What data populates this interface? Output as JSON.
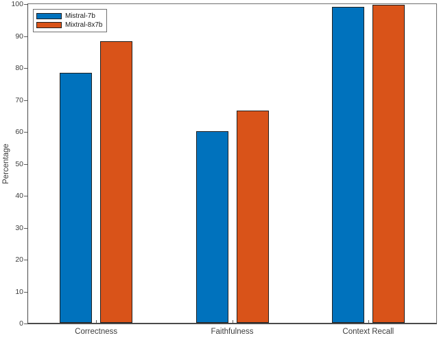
{
  "chart_data": {
    "type": "bar",
    "title": "",
    "categories": [
      "Correctness",
      "Faithfulness",
      "Context Recall"
    ],
    "series": [
      {
        "name": "Mistral-7b",
        "color": "#0072BD",
        "values": [
          78.2,
          60.1,
          99.0
        ]
      },
      {
        "name": "Mixtral-8x7b",
        "color": "#D95319",
        "values": [
          88.1,
          66.4,
          99.5
        ]
      }
    ],
    "xlabel": "",
    "ylabel": "Percentage",
    "ylim": [
      0,
      100
    ],
    "yticks": [
      0,
      10,
      20,
      30,
      40,
      50,
      60,
      70,
      80,
      90,
      100
    ],
    "grid": false,
    "legend_position": "top-left",
    "bar_edge_color": "#1f1f1f",
    "background_color": "#ffffff"
  }
}
